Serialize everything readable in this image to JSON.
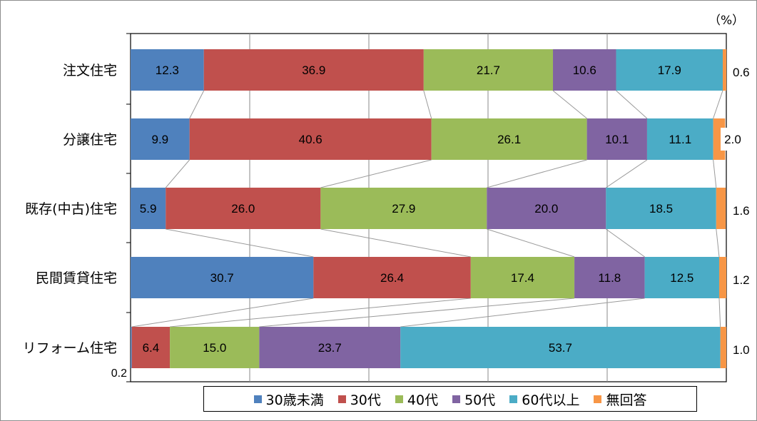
{
  "chart_data": {
    "type": "bar",
    "orientation": "horizontal",
    "stacked": true,
    "unit_label": "（%）",
    "xlim": [
      0,
      100
    ],
    "categories": [
      "注文住宅",
      "分譲住宅",
      "既存(中古)住宅",
      "民間賃貸住宅",
      "リフォーム住宅"
    ],
    "series": [
      {
        "name": "30歳未満",
        "color": "#4f81bd",
        "values": [
          12.3,
          9.9,
          5.9,
          30.7,
          0.2
        ]
      },
      {
        "name": "30代",
        "color": "#c0504d",
        "values": [
          36.9,
          40.6,
          26.0,
          26.4,
          6.4
        ]
      },
      {
        "name": "40代",
        "color": "#9bbb59",
        "values": [
          21.7,
          26.1,
          27.9,
          17.4,
          15.0
        ]
      },
      {
        "name": "50代",
        "color": "#8064a2",
        "values": [
          10.6,
          10.1,
          20.0,
          11.8,
          23.7
        ]
      },
      {
        "name": "60代以上",
        "color": "#4bacc6",
        "values": [
          17.9,
          11.1,
          18.5,
          12.5,
          53.7
        ]
      },
      {
        "name": "無回答",
        "color": "#f79646",
        "values": [
          0.6,
          2.0,
          1.6,
          1.2,
          1.0
        ]
      }
    ],
    "value_labels": [
      [
        "12.3",
        "36.9",
        "21.7",
        "10.6",
        "17.9",
        "0.6"
      ],
      [
        "9.9",
        "40.6",
        "26.1",
        "10.1",
        "11.1",
        "2.0"
      ],
      [
        "5.9",
        "26.0",
        "27.9",
        "20.0",
        "18.5",
        "1.6"
      ],
      [
        "30.7",
        "26.4",
        "17.4",
        "11.8",
        "12.5",
        "1.2"
      ],
      [
        "0.2",
        "6.4",
        "15.0",
        "23.7",
        "53.7",
        "1.0"
      ]
    ],
    "gridlines": true,
    "series_connector_lines": true,
    "legend_position": "bottom"
  }
}
